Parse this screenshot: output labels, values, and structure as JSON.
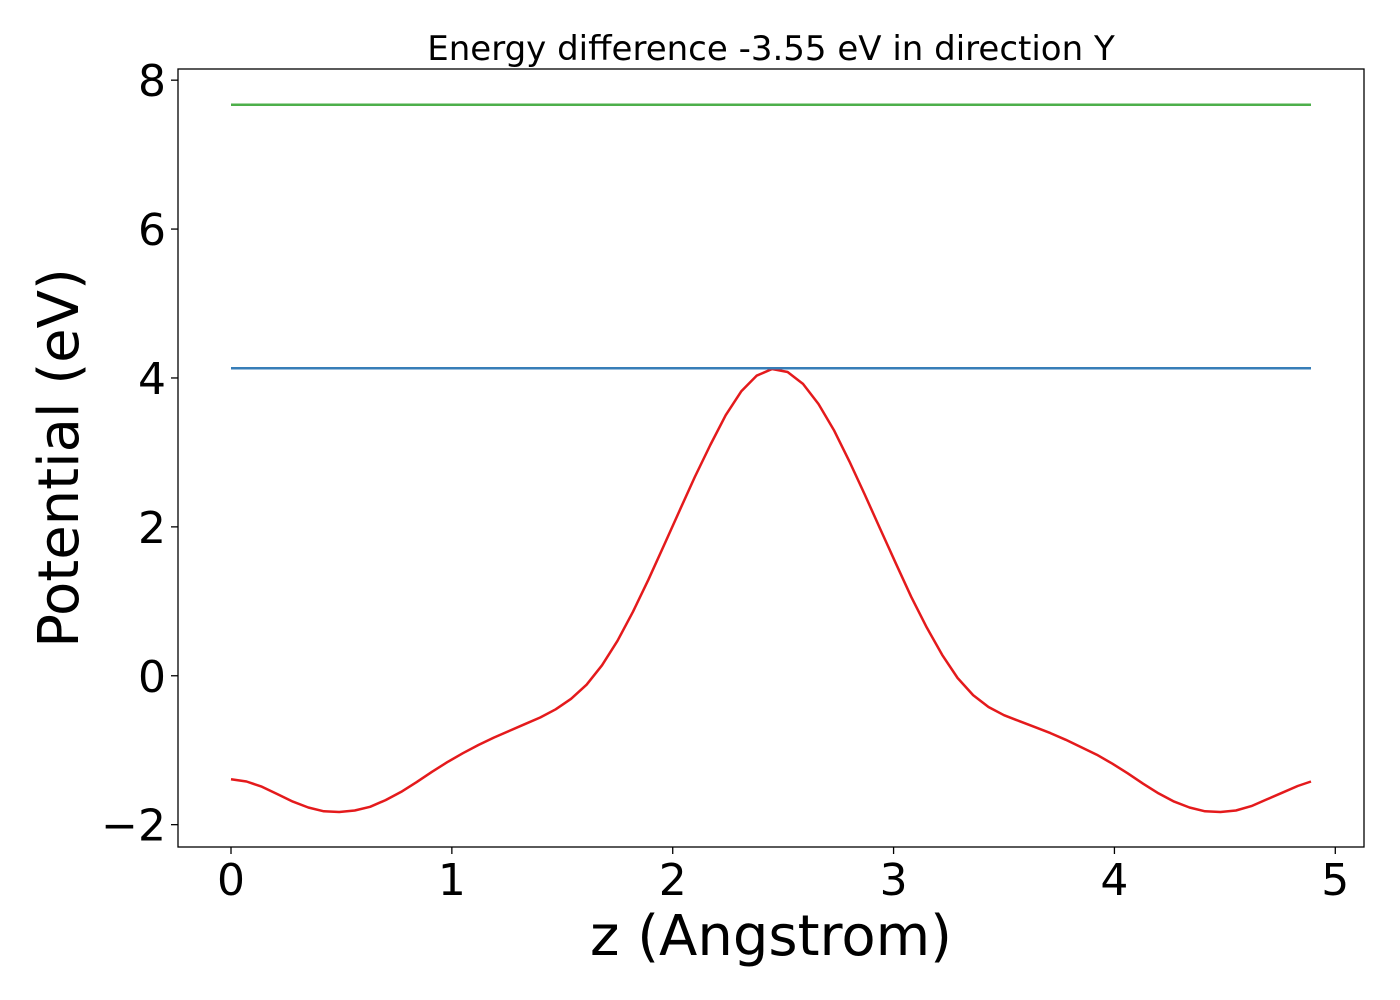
{
  "chart_data": {
    "type": "line",
    "title": "Energy difference -3.55 eV in direction Y",
    "xlabel": "z (Angstrom)",
    "ylabel": "Potential (eV)",
    "xlim": [
      -0.24,
      5.13
    ],
    "ylim": [
      -2.3,
      8.15
    ],
    "x_ticks": [
      0,
      1,
      2,
      3,
      4,
      5
    ],
    "x_tick_labels": [
      "0",
      "1",
      "2",
      "3",
      "4",
      "5"
    ],
    "y_ticks": [
      -2,
      0,
      2,
      4,
      6,
      8
    ],
    "y_tick_labels": [
      "−2",
      "0",
      "2",
      "4",
      "6",
      "8"
    ],
    "grid": false,
    "series": [
      {
        "color": "#e41a1c",
        "points": [
          [
            0.0,
            -1.39
          ],
          [
            0.07,
            -1.42
          ],
          [
            0.14,
            -1.49
          ],
          [
            0.21,
            -1.59
          ],
          [
            0.28,
            -1.69
          ],
          [
            0.35,
            -1.77
          ],
          [
            0.42,
            -1.82
          ],
          [
            0.49,
            -1.83
          ],
          [
            0.56,
            -1.81
          ],
          [
            0.63,
            -1.76
          ],
          [
            0.7,
            -1.67
          ],
          [
            0.77,
            -1.56
          ],
          [
            0.84,
            -1.43
          ],
          [
            0.91,
            -1.29
          ],
          [
            0.98,
            -1.16
          ],
          [
            1.05,
            -1.04
          ],
          [
            1.12,
            -0.93
          ],
          [
            1.19,
            -0.83
          ],
          [
            1.26,
            -0.74
          ],
          [
            1.33,
            -0.65
          ],
          [
            1.4,
            -0.56
          ],
          [
            1.47,
            -0.45
          ],
          [
            1.54,
            -0.31
          ],
          [
            1.61,
            -0.12
          ],
          [
            1.68,
            0.14
          ],
          [
            1.75,
            0.47
          ],
          [
            1.82,
            0.86
          ],
          [
            1.89,
            1.29
          ],
          [
            1.96,
            1.75
          ],
          [
            2.03,
            2.21
          ],
          [
            2.1,
            2.67
          ],
          [
            2.17,
            3.1
          ],
          [
            2.24,
            3.5
          ],
          [
            2.31,
            3.82
          ],
          [
            2.38,
            4.03
          ],
          [
            2.45,
            4.12
          ],
          [
            2.52,
            4.08
          ],
          [
            2.59,
            3.92
          ],
          [
            2.66,
            3.65
          ],
          [
            2.73,
            3.3
          ],
          [
            2.8,
            2.88
          ],
          [
            2.87,
            2.43
          ],
          [
            2.94,
            1.97
          ],
          [
            3.01,
            1.51
          ],
          [
            3.08,
            1.06
          ],
          [
            3.15,
            0.65
          ],
          [
            3.22,
            0.28
          ],
          [
            3.29,
            -0.03
          ],
          [
            3.36,
            -0.26
          ],
          [
            3.43,
            -0.42
          ],
          [
            3.5,
            -0.53
          ],
          [
            3.57,
            -0.61
          ],
          [
            3.64,
            -0.69
          ],
          [
            3.71,
            -0.77
          ],
          [
            3.78,
            -0.86
          ],
          [
            3.85,
            -0.96
          ],
          [
            3.92,
            -1.06
          ],
          [
            3.99,
            -1.18
          ],
          [
            4.06,
            -1.31
          ],
          [
            4.13,
            -1.45
          ],
          [
            4.2,
            -1.58
          ],
          [
            4.27,
            -1.69
          ],
          [
            4.34,
            -1.77
          ],
          [
            4.41,
            -1.82
          ],
          [
            4.48,
            -1.83
          ],
          [
            4.55,
            -1.81
          ],
          [
            4.62,
            -1.75
          ],
          [
            4.69,
            -1.66
          ],
          [
            4.76,
            -1.57
          ],
          [
            4.83,
            -1.48
          ],
          [
            4.89,
            -1.42
          ]
        ]
      },
      {
        "color": "#377eb8",
        "points": [
          [
            0.0,
            4.13
          ],
          [
            4.89,
            4.13
          ]
        ]
      },
      {
        "color": "#4daf4a",
        "points": [
          [
            0.0,
            7.67
          ],
          [
            4.89,
            7.67
          ]
        ]
      }
    ]
  }
}
